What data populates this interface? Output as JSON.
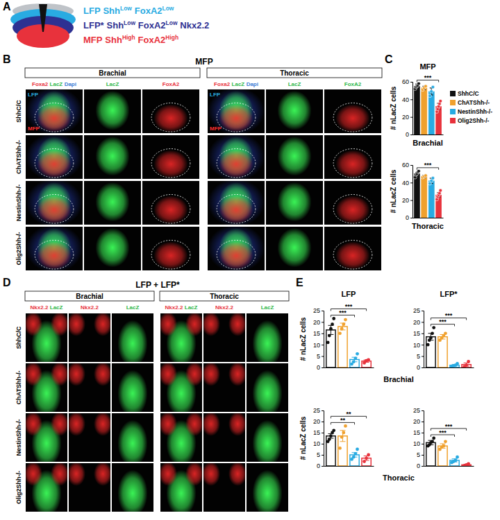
{
  "chart_data": [
    {
      "type": "bar",
      "title": "MFP",
      "xlabel": "Brachial",
      "ylabel": "# nLacZ cells",
      "categories": [
        "ShhC/C",
        "ChATShh-/-",
        "NestinShh-/-",
        "Olig2Shh-/-"
      ],
      "colors": [
        "#111111",
        "#f0a12e",
        "#29abe2",
        "#e8323c"
      ],
      "values": [
        55,
        53,
        49,
        32
      ],
      "errors": [
        2.5,
        2,
        4,
        3.5
      ],
      "points": [
        [
          52,
          54,
          55,
          56,
          58
        ],
        [
          51,
          53,
          55
        ],
        [
          44,
          49,
          54
        ],
        [
          26,
          29,
          32,
          35,
          38
        ]
      ],
      "ylim": [
        0,
        60
      ],
      "yticks": [
        0,
        20,
        40,
        60
      ],
      "tick_labels": "y",
      "legend": "right",
      "annotations": [
        {
          "text": "***",
          "from": "ShhC/C",
          "to": "Olig2Shh-/-"
        }
      ]
    },
    {
      "type": "bar",
      "xlabel": "Thoracic",
      "ylabel": "# nLacZ cells",
      "categories": [
        "ShhC/C",
        "ChATShh-/-",
        "NestinShh-/-",
        "Olig2Shh-/-"
      ],
      "colors": [
        "#111111",
        "#f0a12e",
        "#29abe2",
        "#e8323c"
      ],
      "values": [
        50,
        47,
        42,
        26
      ],
      "errors": [
        1.5,
        1.5,
        3,
        2.5
      ],
      "points": [
        [
          46,
          49,
          50,
          52,
          53
        ],
        [
          46,
          47,
          48
        ],
        [
          39,
          42,
          45
        ],
        [
          21,
          24,
          26,
          28,
          31
        ]
      ],
      "ylim": [
        0,
        60
      ],
      "yticks": [
        0,
        20,
        40,
        60
      ],
      "tick_labels": "y",
      "annotations": [
        {
          "text": "***",
          "from": "ShhC/C",
          "to": "Olig2Shh-/-"
        }
      ]
    },
    {
      "type": "bar",
      "title": "LFP",
      "xlabel": "Brachial",
      "ylabel": "# nLacZ cells",
      "categories": [
        "ShhC/C",
        "ChATShh-/-",
        "NestinShh-/-",
        "Olig2Shh-/-"
      ],
      "colors": [
        "#111111",
        "#f0a12e",
        "#29abe2",
        "#e8323c"
      ],
      "values": [
        16.5,
        18,
        3.5,
        2.8
      ],
      "errors": [
        2,
        1.5,
        1,
        0.5
      ],
      "points": [
        [
          11,
          14,
          17,
          19,
          21.5
        ],
        [
          15,
          17,
          19,
          21
        ],
        [
          1.5,
          2.5,
          4,
          6
        ],
        [
          2,
          3,
          3.4
        ]
      ],
      "ylim": [
        0,
        25
      ],
      "yticks": [
        0,
        5,
        10,
        15,
        20,
        25
      ],
      "tick_labels": "y",
      "annotations": [
        {
          "text": "***",
          "from": "ShhC/C",
          "to": "NestinShh-/-"
        },
        {
          "text": "***",
          "from": "ShhC/C",
          "to": "Olig2Shh-/-"
        }
      ]
    },
    {
      "type": "bar",
      "title": "LFP*",
      "categories": [
        "ShhC/C",
        "ChATShh-/-",
        "NestinShh-/-",
        "Olig2Shh-/-"
      ],
      "colors": [
        "#111111",
        "#f0a12e",
        "#29abe2",
        "#e8323c"
      ],
      "values": [
        13.5,
        13.5,
        1,
        1.3
      ],
      "errors": [
        1.5,
        1,
        0.3,
        0.7
      ],
      "points": [
        [
          10,
          12,
          13,
          15,
          17.5
        ],
        [
          12,
          13,
          14,
          15
        ],
        [
          0.5,
          0.8,
          1,
          1.7
        ],
        [
          0.3,
          1,
          2.6
        ]
      ],
      "ylim": [
        0,
        25
      ],
      "yticks": [
        0,
        5,
        10,
        15,
        20,
        25
      ],
      "tick_labels": "y",
      "annotations": [
        {
          "text": "***",
          "from": "ShhC/C",
          "to": "NestinShh-/-"
        },
        {
          "text": "***",
          "from": "ShhC/C",
          "to": "Olig2Shh-/-"
        }
      ]
    },
    {
      "type": "bar",
      "xlabel": "Thoracic",
      "ylabel": "# nLacZ cells",
      "categories": [
        "ShhC/C",
        "ChATShh-/-",
        "NestinShh-/-",
        "Olig2Shh-/-"
      ],
      "colors": [
        "#111111",
        "#f0a12e",
        "#29abe2",
        "#e8323c"
      ],
      "values": [
        13.5,
        13.5,
        5,
        3.5
      ],
      "errors": [
        1,
        2.5,
        1,
        1
      ],
      "points": [
        [
          11,
          12,
          13.5,
          15,
          16
        ],
        [
          8,
          13,
          15,
          18
        ],
        [
          3,
          4,
          5.5,
          7.5
        ],
        [
          2,
          3.5,
          5
        ]
      ],
      "ylim": [
        0,
        25
      ],
      "yticks": [
        0,
        5,
        10,
        15,
        20,
        25
      ],
      "tick_labels": "y",
      "annotations": [
        {
          "text": "**",
          "from": "ShhC/C",
          "to": "NestinShh-/-"
        },
        {
          "text": "**",
          "from": "ShhC/C",
          "to": "Olig2Shh-/-"
        }
      ]
    },
    {
      "type": "bar",
      "categories": [
        "ShhC/C",
        "ChATShh-/-",
        "NestinShh-/-",
        "Olig2Shh-/-"
      ],
      "colors": [
        "#111111",
        "#f0a12e",
        "#29abe2",
        "#e8323c"
      ],
      "values": [
        10.5,
        9,
        2.5,
        0.5
      ],
      "errors": [
        1,
        1,
        0.7,
        0.3
      ],
      "points": [
        [
          9,
          9.5,
          10.5,
          11,
          12.5
        ],
        [
          7.5,
          8.5,
          9,
          11
        ],
        [
          1.5,
          2,
          2.5,
          4
        ],
        [
          0,
          0.5,
          1
        ]
      ],
      "ylim": [
        0,
        25
      ],
      "yticks": [
        0,
        5,
        10,
        15,
        20,
        25
      ],
      "tick_labels": "y",
      "annotations": [
        {
          "text": "***",
          "from": "ShhC/C",
          "to": "NestinShh-/-"
        },
        {
          "text": "***",
          "from": "ShhC/C",
          "to": "Olig2Shh-/-"
        }
      ]
    }
  ],
  "figure": {
    "panel_labels": [
      "A",
      "B",
      "C",
      "D",
      "E"
    ],
    "schematic_legend": [
      {
        "color": "#29abe2",
        "parts": [
          {
            "text": "LFP"
          },
          {
            "text": "Shh",
            "sup": "Low"
          },
          {
            "text": "FoxA2",
            "sup": "Low"
          }
        ]
      },
      {
        "color": "#2e3192",
        "parts": [
          {
            "text": "LFP*"
          },
          {
            "text": "Shh",
            "sup": "Low"
          },
          {
            "text": "FoxA2",
            "sup": "Low"
          },
          {
            "text": "Nkx2.2"
          }
        ]
      },
      {
        "color": "#e8323c",
        "parts": [
          {
            "text": "MFP"
          },
          {
            "text": "Shh",
            "sup": "High"
          },
          {
            "text": "FoxA2",
            "sup": "High"
          }
        ]
      }
    ],
    "B": {
      "title": "MFP",
      "regions": [
        {
          "name": "Brachial",
          "columns": [
            {
              "parts": [
                {
                  "text": "Foxa2",
                  "color": "#e8323c"
                },
                {
                  "text": "LacZ",
                  "color": "#2fb84a"
                },
                {
                  "text": "Dapi",
                  "color": "#3a7bd5"
                }
              ]
            },
            {
              "parts": [
                {
                  "text": "LacZ",
                  "color": "#2fb84a"
                }
              ]
            },
            {
              "parts": [
                {
                  "text": "FoxA2",
                  "color": "#e8323c"
                }
              ]
            }
          ]
        },
        {
          "name": "Thoracic",
          "columns": [
            {
              "parts": [
                {
                  "text": "Foxa2",
                  "color": "#e8323c"
                },
                {
                  "text": "LacZ",
                  "color": "#2fb84a"
                },
                {
                  "text": "Dapi",
                  "color": "#3a7bd5"
                }
              ]
            },
            {
              "parts": [
                {
                  "text": "LacZ",
                  "color": "#2fb84a"
                }
              ]
            },
            {
              "parts": [
                {
                  "text": "FoxA2",
                  "color": "#2fb84a"
                }
              ]
            }
          ]
        }
      ],
      "rows": [
        "ShhC/C",
        "ChATShh-/-",
        "NestinShh-/-",
        "Olig2Shh-/-"
      ],
      "inset_labels": [
        {
          "text": "LFP",
          "color": "#29abe2"
        },
        {
          "text": "MFP",
          "color": "#ff3030"
        }
      ]
    },
    "D": {
      "title": "LFP + LFP*",
      "regions": [
        {
          "name": "Brachial",
          "columns": [
            {
              "parts": [
                {
                  "text": "Nkx2.2",
                  "color": "#e8323c"
                },
                {
                  "text": "LacZ",
                  "color": "#2fb84a"
                }
              ]
            },
            {
              "parts": [
                {
                  "text": "Nkx2.2",
                  "color": "#e8323c"
                }
              ]
            },
            {
              "parts": [
                {
                  "text": "LacZ",
                  "color": "#2fb84a"
                }
              ]
            }
          ]
        },
        {
          "name": "Thoracic",
          "columns": [
            {
              "parts": [
                {
                  "text": "Nkx2.2",
                  "color": "#e8323c"
                },
                {
                  "text": "LacZ",
                  "color": "#2fb84a"
                }
              ]
            },
            {
              "parts": [
                {
                  "text": "Nkx2.2",
                  "color": "#e8323c"
                }
              ]
            },
            {
              "parts": [
                {
                  "text": "LacZ",
                  "color": "#2fb84a"
                }
              ]
            }
          ]
        }
      ],
      "rows": [
        "ShhC/C",
        "ChATShh-/-",
        "NestinShh-/-",
        "Olig2Shh-/-"
      ]
    }
  }
}
